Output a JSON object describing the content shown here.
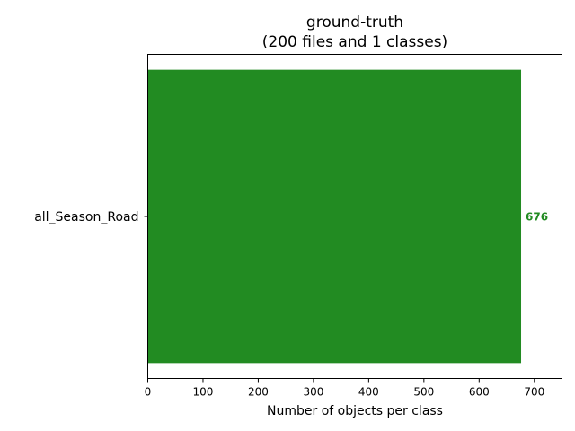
{
  "chart_data": {
    "type": "bar",
    "orientation": "horizontal",
    "title": "ground-truth",
    "subtitle": "(200 files and 1 classes)",
    "xlabel": "Number of objects per class",
    "ylabel": "",
    "categories": [
      "all_Season_Road"
    ],
    "values": [
      676
    ],
    "data_labels": [
      "676"
    ],
    "xlim": [
      0,
      750
    ],
    "xticks": [
      0,
      100,
      200,
      300,
      400,
      500,
      600,
      700
    ],
    "grid": false,
    "bar_color": "#228b22",
    "label_color": "#228b22"
  }
}
